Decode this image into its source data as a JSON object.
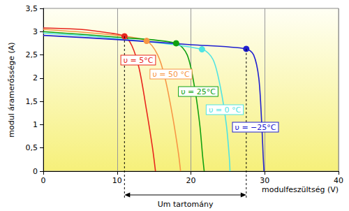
{
  "chart_data": {
    "type": "line",
    "x_label": "modulfeszültség (V)",
    "y_label": "modul áramerőssége (A)",
    "xlim": [
      0,
      40
    ],
    "xticks": [
      0,
      10,
      20,
      30,
      40
    ],
    "ylim": [
      0,
      3.5
    ],
    "yticks": [
      0,
      {
        "value": 0.5,
        "label": "0,5"
      },
      1,
      {
        "value": 1.5,
        "label": "1,5"
      },
      2,
      {
        "value": 2.5,
        "label": "2,5"
      },
      3,
      {
        "value": 3.5,
        "label": "3,5"
      }
    ],
    "grid": "x",
    "marker": "circle",
    "line_style": "solid",
    "series": [
      {
        "name": "υ = 5°C",
        "color": "#e8261e",
        "x": [
          0,
          5,
          9,
          11,
          12,
          13,
          14,
          14.8,
          15.2
        ],
        "values": [
          3.08,
          3.05,
          2.97,
          2.9,
          2.7,
          2.2,
          1.3,
          0.5,
          0
        ],
        "mpp": [
          11,
          2.9
        ]
      },
      {
        "name": "υ = 50 °C",
        "color": "#f79646",
        "x": [
          0,
          10,
          14,
          15.5,
          16.5,
          17.5,
          18.3,
          18.6
        ],
        "values": [
          3.05,
          2.92,
          2.8,
          2.5,
          2.0,
          1.2,
          0.4,
          0
        ],
        "mpp": [
          14,
          2.8
        ]
      },
      {
        "name": "υ = 25°C",
        "color": "#10a010",
        "x": [
          0,
          10,
          18,
          19.5,
          20.5,
          21.2,
          21.6,
          21.8
        ],
        "values": [
          3.0,
          2.88,
          2.75,
          2.5,
          1.8,
          1.0,
          0.3,
          0
        ],
        "mpp": [
          18,
          2.75
        ]
      },
      {
        "name": "υ = 0 °C",
        "color": "#4fe3e3",
        "x": [
          0,
          10,
          21.5,
          23,
          24,
          24.8,
          25.2,
          25.3
        ],
        "values": [
          2.97,
          2.85,
          2.62,
          2.4,
          1.8,
          1.0,
          0.3,
          0
        ],
        "mpp": [
          21.5,
          2.62
        ]
      },
      {
        "name": "υ = −25°C",
        "color": "#2020d0",
        "x": [
          0,
          10,
          20,
          27.5,
          28.5,
          29.2,
          29.6,
          29.8,
          29.9
        ],
        "values": [
          2.92,
          2.83,
          2.72,
          2.63,
          2.5,
          2.0,
          1.0,
          0.3,
          0
        ],
        "mpp": [
          27.5,
          2.63
        ]
      }
    ],
    "range": {
      "label": "Um tartomány",
      "from": 11,
      "to": 27.5
    }
  }
}
